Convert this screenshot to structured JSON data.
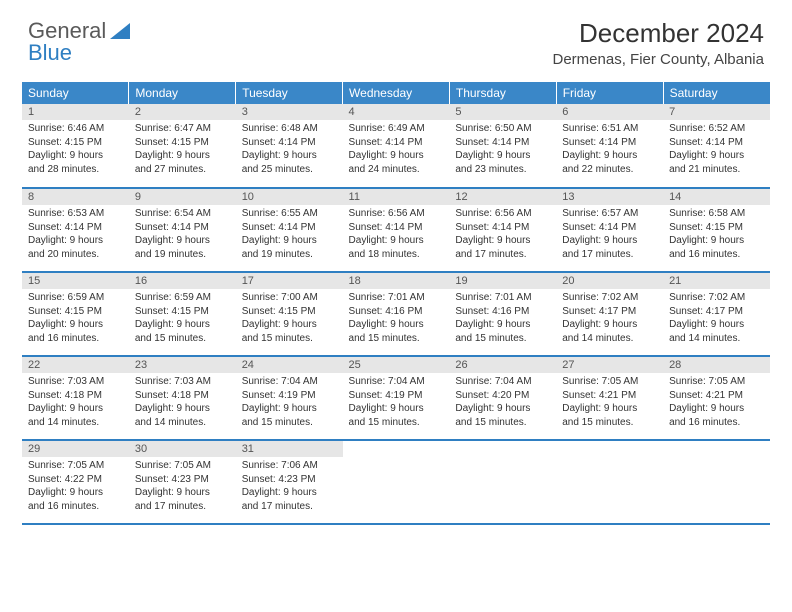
{
  "logo": {
    "text1": "General",
    "text2": "Blue"
  },
  "title": "December 2024",
  "location": "Dermenas, Fier County, Albania",
  "colors": {
    "header_bg": "#3a87c8",
    "header_text": "#ffffff",
    "daynum_bg": "#e6e6e6",
    "row_border": "#2f7fc2"
  },
  "weekday_headers": [
    "Sunday",
    "Monday",
    "Tuesday",
    "Wednesday",
    "Thursday",
    "Friday",
    "Saturday"
  ],
  "weeks": [
    [
      {
        "day": "1",
        "sunrise": "Sunrise: 6:46 AM",
        "sunset": "Sunset: 4:15 PM",
        "daylight1": "Daylight: 9 hours",
        "daylight2": "and 28 minutes."
      },
      {
        "day": "2",
        "sunrise": "Sunrise: 6:47 AM",
        "sunset": "Sunset: 4:15 PM",
        "daylight1": "Daylight: 9 hours",
        "daylight2": "and 27 minutes."
      },
      {
        "day": "3",
        "sunrise": "Sunrise: 6:48 AM",
        "sunset": "Sunset: 4:14 PM",
        "daylight1": "Daylight: 9 hours",
        "daylight2": "and 25 minutes."
      },
      {
        "day": "4",
        "sunrise": "Sunrise: 6:49 AM",
        "sunset": "Sunset: 4:14 PM",
        "daylight1": "Daylight: 9 hours",
        "daylight2": "and 24 minutes."
      },
      {
        "day": "5",
        "sunrise": "Sunrise: 6:50 AM",
        "sunset": "Sunset: 4:14 PM",
        "daylight1": "Daylight: 9 hours",
        "daylight2": "and 23 minutes."
      },
      {
        "day": "6",
        "sunrise": "Sunrise: 6:51 AM",
        "sunset": "Sunset: 4:14 PM",
        "daylight1": "Daylight: 9 hours",
        "daylight2": "and 22 minutes."
      },
      {
        "day": "7",
        "sunrise": "Sunrise: 6:52 AM",
        "sunset": "Sunset: 4:14 PM",
        "daylight1": "Daylight: 9 hours",
        "daylight2": "and 21 minutes."
      }
    ],
    [
      {
        "day": "8",
        "sunrise": "Sunrise: 6:53 AM",
        "sunset": "Sunset: 4:14 PM",
        "daylight1": "Daylight: 9 hours",
        "daylight2": "and 20 minutes."
      },
      {
        "day": "9",
        "sunrise": "Sunrise: 6:54 AM",
        "sunset": "Sunset: 4:14 PM",
        "daylight1": "Daylight: 9 hours",
        "daylight2": "and 19 minutes."
      },
      {
        "day": "10",
        "sunrise": "Sunrise: 6:55 AM",
        "sunset": "Sunset: 4:14 PM",
        "daylight1": "Daylight: 9 hours",
        "daylight2": "and 19 minutes."
      },
      {
        "day": "11",
        "sunrise": "Sunrise: 6:56 AM",
        "sunset": "Sunset: 4:14 PM",
        "daylight1": "Daylight: 9 hours",
        "daylight2": "and 18 minutes."
      },
      {
        "day": "12",
        "sunrise": "Sunrise: 6:56 AM",
        "sunset": "Sunset: 4:14 PM",
        "daylight1": "Daylight: 9 hours",
        "daylight2": "and 17 minutes."
      },
      {
        "day": "13",
        "sunrise": "Sunrise: 6:57 AM",
        "sunset": "Sunset: 4:14 PM",
        "daylight1": "Daylight: 9 hours",
        "daylight2": "and 17 minutes."
      },
      {
        "day": "14",
        "sunrise": "Sunrise: 6:58 AM",
        "sunset": "Sunset: 4:15 PM",
        "daylight1": "Daylight: 9 hours",
        "daylight2": "and 16 minutes."
      }
    ],
    [
      {
        "day": "15",
        "sunrise": "Sunrise: 6:59 AM",
        "sunset": "Sunset: 4:15 PM",
        "daylight1": "Daylight: 9 hours",
        "daylight2": "and 16 minutes."
      },
      {
        "day": "16",
        "sunrise": "Sunrise: 6:59 AM",
        "sunset": "Sunset: 4:15 PM",
        "daylight1": "Daylight: 9 hours",
        "daylight2": "and 15 minutes."
      },
      {
        "day": "17",
        "sunrise": "Sunrise: 7:00 AM",
        "sunset": "Sunset: 4:15 PM",
        "daylight1": "Daylight: 9 hours",
        "daylight2": "and 15 minutes."
      },
      {
        "day": "18",
        "sunrise": "Sunrise: 7:01 AM",
        "sunset": "Sunset: 4:16 PM",
        "daylight1": "Daylight: 9 hours",
        "daylight2": "and 15 minutes."
      },
      {
        "day": "19",
        "sunrise": "Sunrise: 7:01 AM",
        "sunset": "Sunset: 4:16 PM",
        "daylight1": "Daylight: 9 hours",
        "daylight2": "and 15 minutes."
      },
      {
        "day": "20",
        "sunrise": "Sunrise: 7:02 AM",
        "sunset": "Sunset: 4:17 PM",
        "daylight1": "Daylight: 9 hours",
        "daylight2": "and 14 minutes."
      },
      {
        "day": "21",
        "sunrise": "Sunrise: 7:02 AM",
        "sunset": "Sunset: 4:17 PM",
        "daylight1": "Daylight: 9 hours",
        "daylight2": "and 14 minutes."
      }
    ],
    [
      {
        "day": "22",
        "sunrise": "Sunrise: 7:03 AM",
        "sunset": "Sunset: 4:18 PM",
        "daylight1": "Daylight: 9 hours",
        "daylight2": "and 14 minutes."
      },
      {
        "day": "23",
        "sunrise": "Sunrise: 7:03 AM",
        "sunset": "Sunset: 4:18 PM",
        "daylight1": "Daylight: 9 hours",
        "daylight2": "and 14 minutes."
      },
      {
        "day": "24",
        "sunrise": "Sunrise: 7:04 AM",
        "sunset": "Sunset: 4:19 PM",
        "daylight1": "Daylight: 9 hours",
        "daylight2": "and 15 minutes."
      },
      {
        "day": "25",
        "sunrise": "Sunrise: 7:04 AM",
        "sunset": "Sunset: 4:19 PM",
        "daylight1": "Daylight: 9 hours",
        "daylight2": "and 15 minutes."
      },
      {
        "day": "26",
        "sunrise": "Sunrise: 7:04 AM",
        "sunset": "Sunset: 4:20 PM",
        "daylight1": "Daylight: 9 hours",
        "daylight2": "and 15 minutes."
      },
      {
        "day": "27",
        "sunrise": "Sunrise: 7:05 AM",
        "sunset": "Sunset: 4:21 PM",
        "daylight1": "Daylight: 9 hours",
        "daylight2": "and 15 minutes."
      },
      {
        "day": "28",
        "sunrise": "Sunrise: 7:05 AM",
        "sunset": "Sunset: 4:21 PM",
        "daylight1": "Daylight: 9 hours",
        "daylight2": "and 16 minutes."
      }
    ],
    [
      {
        "day": "29",
        "sunrise": "Sunrise: 7:05 AM",
        "sunset": "Sunset: 4:22 PM",
        "daylight1": "Daylight: 9 hours",
        "daylight2": "and 16 minutes."
      },
      {
        "day": "30",
        "sunrise": "Sunrise: 7:05 AM",
        "sunset": "Sunset: 4:23 PM",
        "daylight1": "Daylight: 9 hours",
        "daylight2": "and 17 minutes."
      },
      {
        "day": "31",
        "sunrise": "Sunrise: 7:06 AM",
        "sunset": "Sunset: 4:23 PM",
        "daylight1": "Daylight: 9 hours",
        "daylight2": "and 17 minutes."
      },
      null,
      null,
      null,
      null
    ]
  ]
}
